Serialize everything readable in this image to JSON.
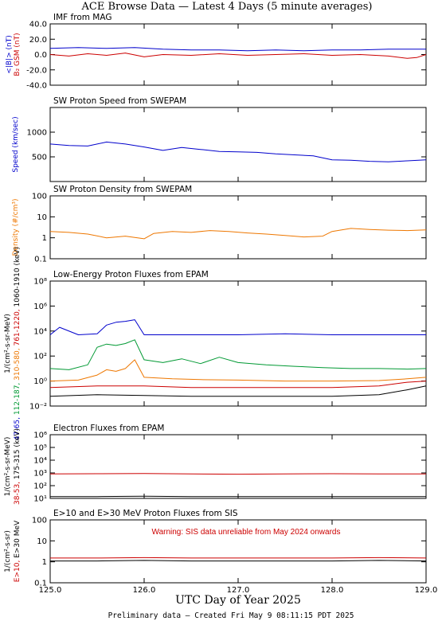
{
  "page": {
    "title": "ACE Browse Data — Latest 4 Days (5 minute averages)",
    "xlabel": "UTC Day of Year 2025",
    "footer": "Preliminary data — Created Fri May  9 08:11:15 PDT 2025",
    "x_ticks": [
      "125.0",
      "126.0",
      "127.0",
      "128.0",
      "129.0"
    ]
  },
  "chart_data": [
    {
      "type": "line",
      "title": "IMF from MAG",
      "ylabel_parts": [
        {
          "text": "<|B|> (nT)",
          "color": "#0000cc"
        },
        {
          "text": "B₂ GSM (nT)",
          "color": "#cc0000"
        }
      ],
      "ylim": [
        -40,
        40
      ],
      "y_ticks": [
        "40.0",
        "20.0",
        "0.0",
        "-20.0",
        "-40.0"
      ],
      "xlim": [
        125.0,
        129.0
      ],
      "series": [
        {
          "color": "#0000cc",
          "x": [
            125.0,
            125.3,
            125.6,
            125.9,
            126.2,
            126.5,
            126.8,
            127.1,
            127.4,
            127.7,
            128.0,
            128.3,
            128.6,
            128.9,
            129.0
          ],
          "y": [
            8,
            9,
            8,
            9,
            7,
            6,
            6,
            5,
            6,
            5,
            6,
            6,
            7,
            7,
            7
          ]
        },
        {
          "color": "#cc0000",
          "x": [
            125.0,
            125.2,
            125.4,
            125.6,
            125.8,
            126.0,
            126.2,
            126.5,
            126.8,
            127.1,
            127.4,
            127.7,
            128.0,
            128.3,
            128.6,
            128.8,
            128.9,
            129.0
          ],
          "y": [
            0,
            -2,
            1,
            -1,
            2,
            -3,
            0,
            -1,
            1,
            -1,
            0,
            1,
            -1,
            0,
            -2,
            -5,
            -4,
            0
          ]
        }
      ]
    },
    {
      "type": "line",
      "title": "SW Proton Speed from SWEPAM",
      "ylabel_parts": [
        {
          "text": "Speed (km/sec)",
          "color": "#0000cc"
        }
      ],
      "ylim": [
        0,
        1500
      ],
      "y_ticks": [
        "1000",
        "500"
      ],
      "xlim": [
        125.0,
        129.0
      ],
      "series": [
        {
          "color": "#0000cc",
          "x": [
            125.0,
            125.2,
            125.4,
            125.6,
            125.8,
            126.0,
            126.2,
            126.4,
            126.6,
            126.8,
            127.0,
            127.2,
            127.4,
            127.6,
            127.8,
            128.0,
            128.2,
            128.4,
            128.6,
            128.8,
            129.0
          ],
          "y": [
            760,
            730,
            720,
            800,
            760,
            700,
            630,
            690,
            650,
            610,
            600,
            590,
            560,
            540,
            520,
            440,
            430,
            410,
            400,
            420,
            440
          ]
        }
      ]
    },
    {
      "type": "line",
      "title": "SW Proton Density from SWEPAM",
      "ylabel_parts": [
        {
          "text": "Density (#/cm³)",
          "color": "#ee7700"
        }
      ],
      "log_scale": true,
      "ylim": [
        0.1,
        100
      ],
      "y_ticks": [
        "100",
        "10",
        "1",
        "0.1"
      ],
      "xlim": [
        125.0,
        129.0
      ],
      "series": [
        {
          "color": "#ee7700",
          "x": [
            125.0,
            125.2,
            125.4,
            125.6,
            125.8,
            126.0,
            126.1,
            126.3,
            126.5,
            126.7,
            126.9,
            127.1,
            127.3,
            127.5,
            127.7,
            127.9,
            128.0,
            128.2,
            128.4,
            128.6,
            128.8,
            129.0
          ],
          "y": [
            2.0,
            1.8,
            1.5,
            1.0,
            1.2,
            0.9,
            1.6,
            2.0,
            1.8,
            2.2,
            2.0,
            1.7,
            1.5,
            1.3,
            1.1,
            1.2,
            2.0,
            2.8,
            2.5,
            2.3,
            2.2,
            2.4
          ]
        }
      ]
    },
    {
      "type": "line",
      "title": "Low-Energy Proton Fluxes from EPAM",
      "ylabel_parts": [
        {
          "text": "1/(cm²-s-sr-MeV)",
          "color": "#000000"
        },
        {
          "text": "47-65,",
          "color": "#0000cc"
        },
        {
          "text": "112-187,",
          "color": "#009933"
        },
        {
          "text": "310-580,",
          "color": "#ee7700"
        },
        {
          "text": "761-1220,",
          "color": "#cc0000"
        },
        {
          "text": "1060-1910 (keV)",
          "color": "#000000"
        }
      ],
      "log_scale": true,
      "ylim": [
        0.01,
        100000000
      ],
      "y_ticks": [
        "10⁸",
        "10⁶",
        "10⁴",
        "10²",
        "10⁰",
        "10⁻²"
      ],
      "xlim": [
        125.0,
        129.0
      ],
      "series": [
        {
          "color": "#0000cc",
          "x": [
            125.0,
            125.1,
            125.3,
            125.5,
            125.6,
            125.7,
            125.8,
            125.9,
            126.0,
            126.2,
            126.5,
            127.0,
            127.5,
            128.0,
            128.5,
            129.0
          ],
          "y": [
            5000,
            20000,
            5000,
            6000,
            30000,
            50000,
            60000,
            80000,
            5000,
            5000,
            5000,
            5000,
            6000,
            5000,
            5000,
            5000
          ]
        },
        {
          "color": "#009933",
          "x": [
            125.0,
            125.2,
            125.4,
            125.5,
            125.6,
            125.7,
            125.8,
            125.9,
            126.0,
            126.2,
            126.4,
            126.6,
            126.8,
            127.0,
            127.3,
            127.6,
            127.9,
            128.2,
            128.5,
            128.8,
            129.0
          ],
          "y": [
            10,
            8,
            20,
            500,
            900,
            700,
            1000,
            2000,
            50,
            30,
            60,
            25,
            80,
            30,
            20,
            15,
            12,
            10,
            10,
            9,
            10
          ]
        },
        {
          "color": "#ee7700",
          "x": [
            125.0,
            125.3,
            125.5,
            125.6,
            125.7,
            125.8,
            125.9,
            126.0,
            126.3,
            126.6,
            127.0,
            127.5,
            128.0,
            128.5,
            128.8,
            129.0
          ],
          "y": [
            1.0,
            1.2,
            3.0,
            8.0,
            6.0,
            10.0,
            50.0,
            2.0,
            1.5,
            1.3,
            1.2,
            1.0,
            1.0,
            1.1,
            1.5,
            2.0
          ]
        },
        {
          "color": "#cc0000",
          "x": [
            125.0,
            125.5,
            126.0,
            126.5,
            127.0,
            127.5,
            128.0,
            128.5,
            128.8,
            129.0
          ],
          "y": [
            0.3,
            0.4,
            0.4,
            0.3,
            0.3,
            0.3,
            0.3,
            0.4,
            0.8,
            1.0
          ]
        },
        {
          "color": "#000000",
          "x": [
            125.0,
            125.5,
            126.0,
            126.5,
            127.0,
            127.5,
            128.0,
            128.5,
            128.8,
            129.0
          ],
          "y": [
            0.06,
            0.08,
            0.07,
            0.06,
            0.06,
            0.06,
            0.06,
            0.08,
            0.2,
            0.4
          ]
        }
      ]
    },
    {
      "type": "line",
      "title": "Electron Fluxes from EPAM",
      "ylabel_parts": [
        {
          "text": "1/(cm²-s-sr-MeV)",
          "color": "#000000"
        },
        {
          "text": "38-53,",
          "color": "#cc0000"
        },
        {
          "text": "175-315 (keV)",
          "color": "#000000"
        }
      ],
      "log_scale": true,
      "ylim": [
        10,
        10000000
      ],
      "y_ticks": [
        "10⁶",
        "10⁵",
        "10⁴",
        "10³",
        "10²",
        "10¹"
      ],
      "xlim": [
        125.0,
        129.0
      ],
      "series": [
        {
          "color": "#cc0000",
          "x": [
            125.0,
            125.5,
            126.0,
            126.5,
            127.0,
            127.5,
            128.0,
            128.5,
            129.0
          ],
          "y": [
            2000,
            2100,
            2200,
            2000,
            1900,
            2000,
            2100,
            2000,
            2000
          ]
        },
        {
          "color": "#000000",
          "x": [
            125.0,
            125.5,
            126.0,
            126.5,
            127.0,
            127.5,
            128.0,
            128.5,
            129.0
          ],
          "y": [
            15,
            15,
            16,
            15,
            15,
            15,
            15,
            15,
            15
          ]
        }
      ]
    },
    {
      "type": "line",
      "title": "E>10 and E>30 MeV Proton Fluxes from SIS",
      "ylabel_parts": [
        {
          "text": "1/(cm²-s-sr)",
          "color": "#000000"
        },
        {
          "text": "E>10,",
          "color": "#cc0000"
        },
        {
          "text": "E>30 MeV",
          "color": "#000000"
        }
      ],
      "annotation": "Warning: SIS data unreliable from May 2024 onwards",
      "log_scale": true,
      "ylim": [
        0.1,
        200
      ],
      "y_ticks": [
        "100",
        "10",
        "1",
        "0.1"
      ],
      "xlim": [
        125.0,
        129.0
      ],
      "series": [
        {
          "color": "#cc0000",
          "x": [
            125.0,
            125.5,
            126.0,
            126.5,
            127.0,
            127.5,
            128.0,
            128.5,
            129.0
          ],
          "y": [
            2.0,
            2.0,
            2.1,
            2.0,
            2.0,
            2.0,
            2.0,
            2.1,
            2.0
          ]
        },
        {
          "color": "#000000",
          "x": [
            125.0,
            125.5,
            126.0,
            126.5,
            127.0,
            127.5,
            128.0,
            128.5,
            129.0
          ],
          "y": [
            1.4,
            1.4,
            1.5,
            1.4,
            1.4,
            1.4,
            1.4,
            1.5,
            1.4
          ]
        }
      ]
    }
  ]
}
